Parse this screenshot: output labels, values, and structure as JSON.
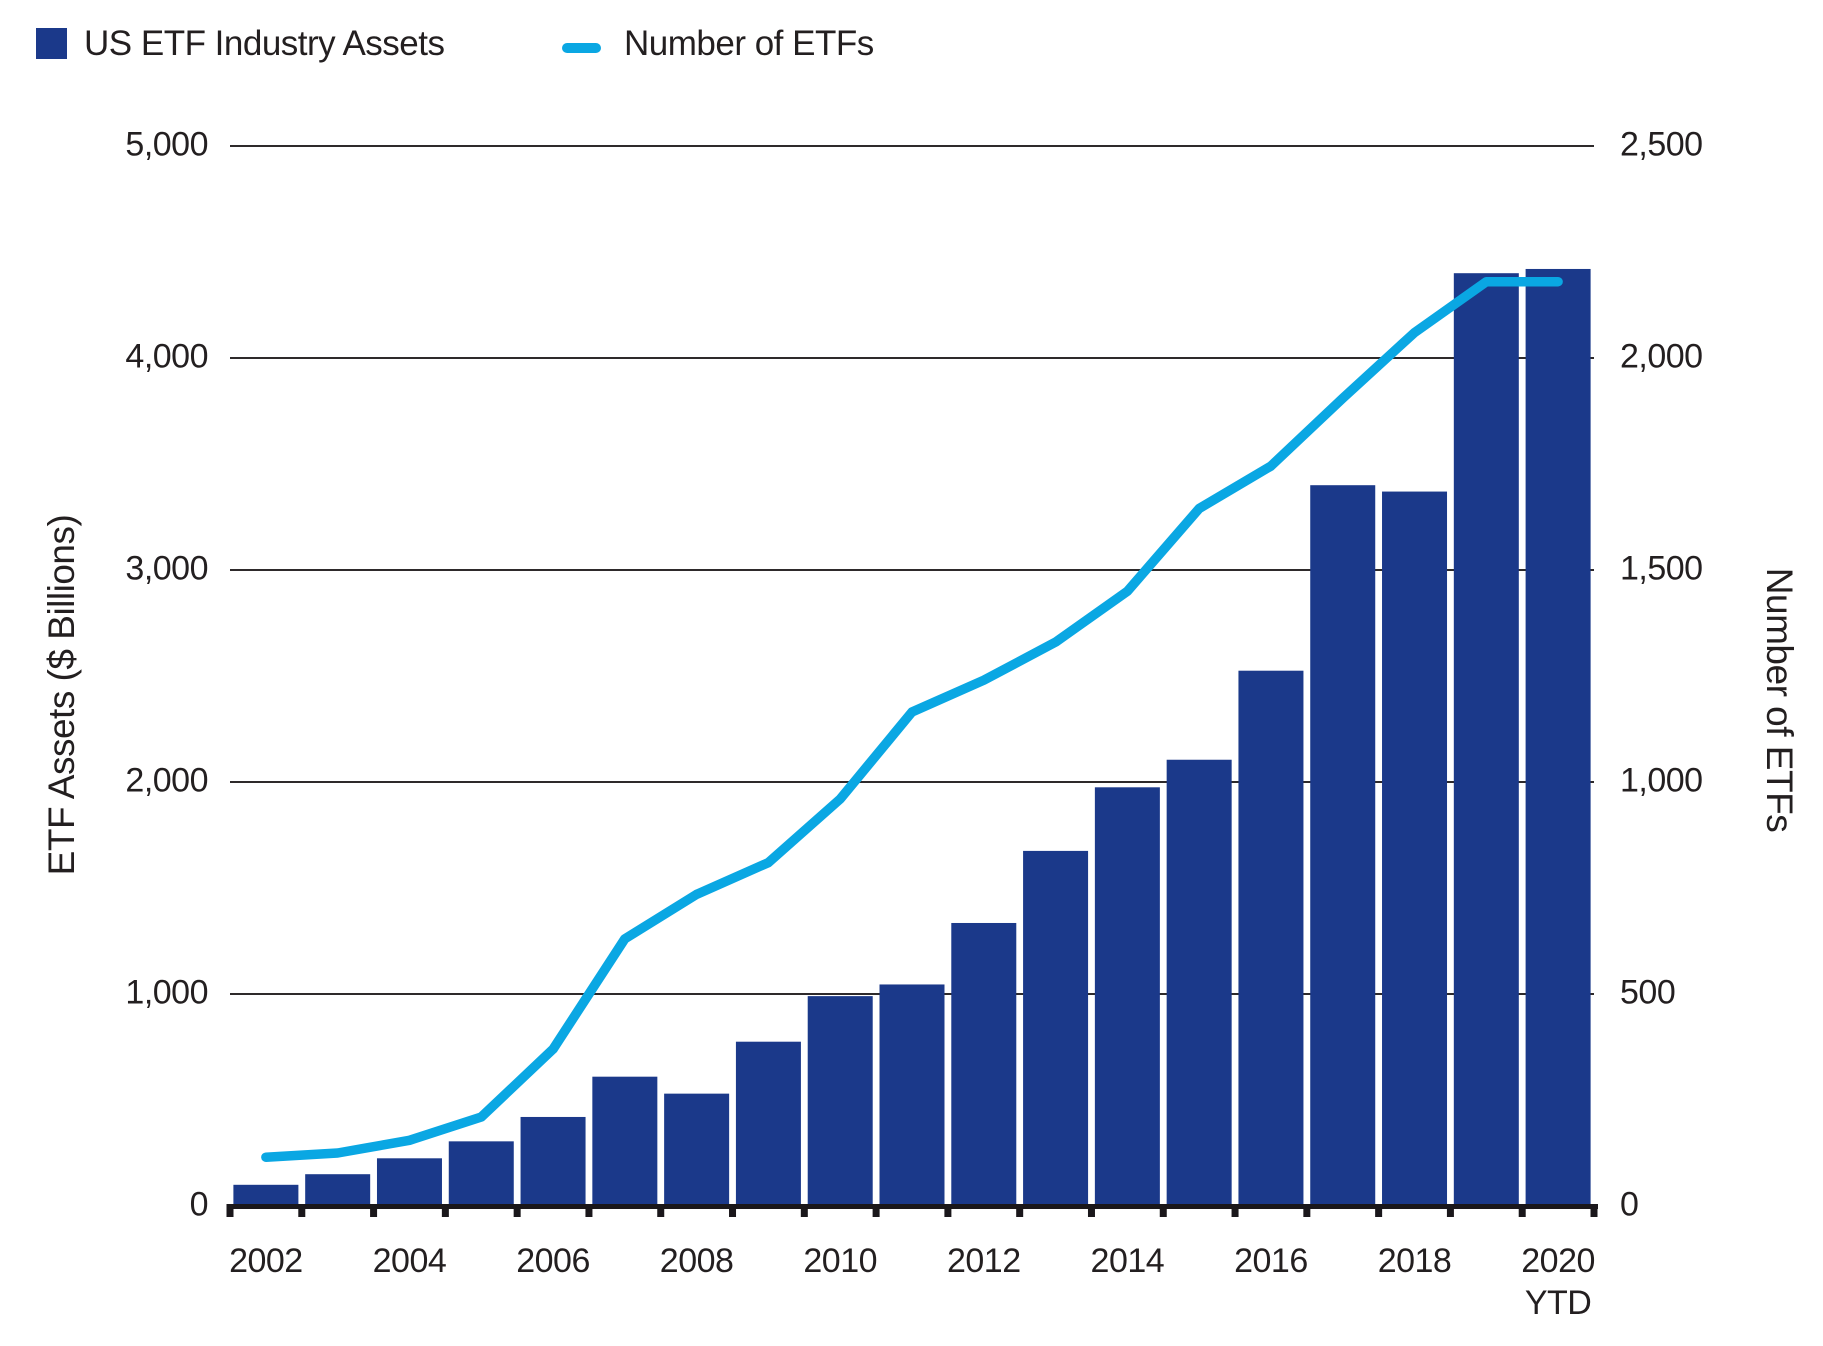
{
  "legend": {
    "assets_label": "US ETF Industry Assets",
    "etfs_label": "Number of ETFs"
  },
  "axes": {
    "left": {
      "title": "ETF Assets ($ Billions)",
      "tick_labels": [
        "5,000",
        "4,000",
        "3,000",
        "2,000",
        "1,000",
        "0"
      ],
      "tick_values": [
        5000,
        4000,
        3000,
        2000,
        1000,
        0
      ]
    },
    "right": {
      "title": "Number of ETFs",
      "tick_labels": [
        "2,500",
        "2,000",
        "1,500",
        "1,000",
        "500",
        "0"
      ],
      "tick_values": [
        2500,
        2000,
        1500,
        1000,
        500,
        0
      ]
    },
    "x": {
      "tick_labels": [
        "2002",
        "2004",
        "2006",
        "2008",
        "2010",
        "2012",
        "2014",
        "2016",
        "2018",
        "2020"
      ],
      "last_label_suffix": "YTD"
    }
  },
  "colors": {
    "bar": "#1b398a",
    "line": "#0aa7e3",
    "text": "#231f20",
    "gridline": "#2e2a2b",
    "axis_line": "#1a171b"
  },
  "chart_data": {
    "type": "bar",
    "subtype": "bar-and-line-combo",
    "categories": [
      "2002",
      "2003",
      "2004",
      "2005",
      "2006",
      "2007",
      "2008",
      "2009",
      "2010",
      "2011",
      "2012",
      "2013",
      "2014",
      "2015",
      "2016",
      "2017",
      "2018",
      "2019",
      "2020 YTD"
    ],
    "series": [
      {
        "name": "US ETF Industry Assets",
        "type": "bar",
        "axis": "left",
        "values": [
          100,
          150,
          225,
          305,
          420,
          610,
          530,
          775,
          990,
          1045,
          1335,
          1675,
          1975,
          2105,
          2525,
          3400,
          3370,
          4400,
          4420
        ]
      },
      {
        "name": "Number of ETFs",
        "type": "line",
        "axis": "right",
        "values": [
          115,
          125,
          155,
          210,
          370,
          630,
          735,
          810,
          960,
          1165,
          1240,
          1330,
          1450,
          1645,
          1745,
          1905,
          2060,
          2180,
          2180
        ]
      }
    ],
    "left_axis_range": [
      0,
      5000
    ],
    "right_axis_range": [
      0,
      2500
    ],
    "grid": "horizontal-only",
    "legend_position": "top-left"
  }
}
